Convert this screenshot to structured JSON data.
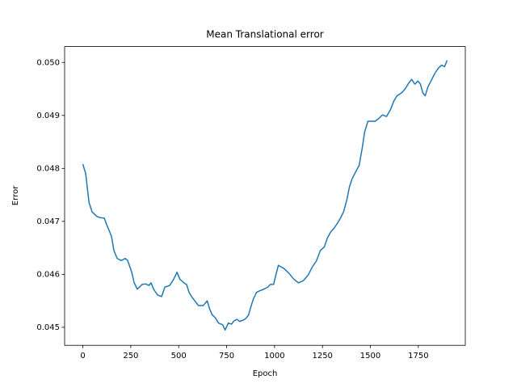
{
  "chart_data": {
    "type": "line",
    "title": "Mean Translational error",
    "xlabel": "Epoch",
    "ylabel": "Error",
    "x": [
      0,
      15,
      32,
      48,
      74,
      91,
      112,
      124,
      137,
      150,
      162,
      179,
      200,
      221,
      234,
      255,
      268,
      284,
      310,
      327,
      345,
      356,
      369,
      390,
      411,
      428,
      453,
      474,
      491,
      506,
      527,
      541,
      554,
      571,
      584,
      603,
      628,
      649,
      661,
      674,
      691,
      708,
      729,
      742,
      759,
      776,
      788,
      805,
      818,
      839,
      851,
      864,
      876,
      889,
      906,
      923,
      944,
      965,
      978,
      995,
      1007,
      1020,
      1049,
      1075,
      1100,
      1125,
      1150,
      1176,
      1197,
      1218,
      1239,
      1260,
      1276,
      1293,
      1310,
      1331,
      1348,
      1361,
      1378,
      1390,
      1403,
      1428,
      1441,
      1458,
      1470,
      1487,
      1504,
      1525,
      1546,
      1563,
      1584,
      1605,
      1622,
      1639,
      1664,
      1681,
      1698,
      1715,
      1732,
      1748,
      1761,
      1774,
      1786,
      1799,
      1816,
      1837,
      1854,
      1871,
      1887,
      1900
    ],
    "series": [
      {
        "name": "Error",
        "color": "#1f77b4",
        "values": [
          0.04808,
          0.0479,
          0.04736,
          0.04718,
          0.04709,
          0.04707,
          0.04706,
          0.04694,
          0.04683,
          0.04671,
          0.04645,
          0.0463,
          0.04626,
          0.0463,
          0.04626,
          0.04604,
          0.04584,
          0.04572,
          0.04581,
          0.04582,
          0.04579,
          0.04584,
          0.04572,
          0.04561,
          0.04558,
          0.04576,
          0.04579,
          0.04591,
          0.04604,
          0.04591,
          0.04584,
          0.04581,
          0.04566,
          0.04556,
          0.0455,
          0.04541,
          0.04541,
          0.0455,
          0.04535,
          0.04524,
          0.04518,
          0.04508,
          0.04505,
          0.04495,
          0.04508,
          0.04506,
          0.04512,
          0.04515,
          0.04511,
          0.04514,
          0.04517,
          0.04523,
          0.04538,
          0.04553,
          0.04566,
          0.04569,
          0.04572,
          0.04576,
          0.04581,
          0.04581,
          0.04599,
          0.04617,
          0.04611,
          0.04602,
          0.04591,
          0.04584,
          0.04588,
          0.04599,
          0.04614,
          0.04625,
          0.04645,
          0.04652,
          0.04669,
          0.0468,
          0.04687,
          0.04698,
          0.04709,
          0.04719,
          0.04742,
          0.04764,
          0.04779,
          0.04797,
          0.04805,
          0.0484,
          0.04869,
          0.04889,
          0.04889,
          0.04889,
          0.04895,
          0.04901,
          0.04898,
          0.04911,
          0.04927,
          0.04937,
          0.04943,
          0.0495,
          0.0496,
          0.04968,
          0.04959,
          0.04965,
          0.04959,
          0.04942,
          0.04937,
          0.04953,
          0.04965,
          0.0498,
          0.04989,
          0.04995,
          0.04992,
          0.05004
        ]
      }
    ],
    "xlim": [
      -95,
      1995
    ],
    "xticks": [
      0,
      250,
      500,
      750,
      1000,
      1250,
      1500,
      1750
    ],
    "ylim": [
      0.04466,
      0.0503
    ],
    "yticks": [
      0.045,
      0.046,
      0.047,
      0.048,
      0.049,
      {
        "value": 0.05,
        "label": "0.050"
      }
    ]
  }
}
